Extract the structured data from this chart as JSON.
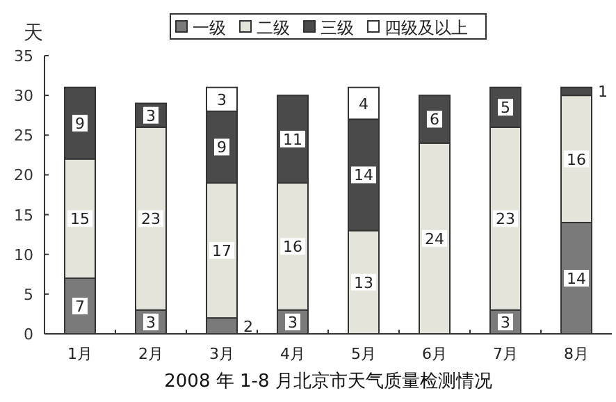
{
  "chart_data": {
    "type": "bar",
    "stacked": true,
    "title": "2008 年 1-8 月北京市天气质量检测情况",
    "ylabel": "天",
    "categories": [
      "1月",
      "2月",
      "3月",
      "4月",
      "5月",
      "6月",
      "7月",
      "8月"
    ],
    "ylim": [
      0,
      35
    ],
    "yticks": [
      0,
      5,
      10,
      15,
      20,
      25,
      30,
      35
    ],
    "grid": false,
    "legend": "top",
    "series": [
      {
        "name": "一级",
        "color": "#7a7a7a",
        "values": [
          7,
          3,
          2,
          3,
          0,
          0,
          3,
          14
        ],
        "value_labels": [
          "7",
          "3",
          "2",
          "3",
          null,
          null,
          "3",
          "14"
        ]
      },
      {
        "name": "二级",
        "color": "#e4e4da",
        "values": [
          15,
          23,
          17,
          16,
          13,
          24,
          23,
          16
        ],
        "value_labels": [
          "15",
          "23",
          "17",
          "16",
          "13",
          "24",
          "23",
          "16"
        ]
      },
      {
        "name": "三级",
        "color": "#4a4a4a",
        "values": [
          9,
          3,
          9,
          11,
          14,
          6,
          5,
          1
        ],
        "value_labels": [
          "9",
          "3",
          "9",
          "11",
          "14",
          "6",
          "5",
          "1"
        ]
      },
      {
        "name": "四级及以上",
        "color": "#ffffff",
        "values": [
          0,
          0,
          3,
          0,
          4,
          0,
          0,
          0
        ],
        "value_labels": [
          null,
          null,
          "3",
          null,
          "4",
          null,
          null,
          null
        ]
      }
    ]
  }
}
